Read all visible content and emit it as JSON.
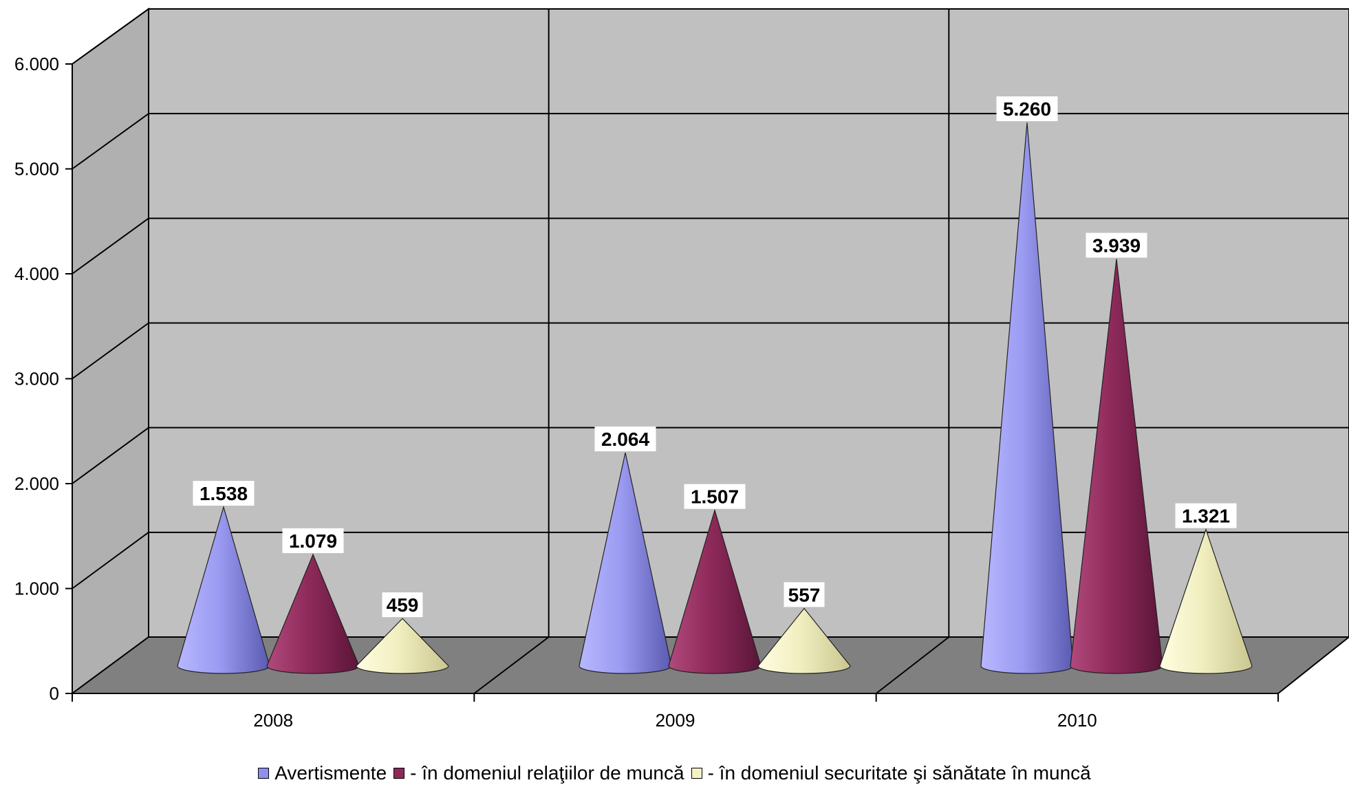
{
  "chart_data": {
    "type": "bar",
    "style": "3d-cone",
    "categories": [
      "2008",
      "2009",
      "2010"
    ],
    "series": [
      {
        "name": "Avertismente",
        "values": [
          1538,
          2064,
          5260
        ],
        "labels": [
          "1.538",
          "2.064",
          "5.260"
        ],
        "color": "#8f8fef"
      },
      {
        "name": "-  în domeniul relaţiilor de muncă",
        "values": [
          1079,
          1507,
          3939
        ],
        "labels": [
          "1.079",
          "1.507",
          "3.939"
        ],
        "color": "#8e2a5a"
      },
      {
        "name": "-  în domeniul securitate şi sănătate în muncă",
        "values": [
          459,
          557,
          1321
        ],
        "labels": [
          "459",
          "557",
          "1.321"
        ],
        "color": "#f4f2c4"
      }
    ],
    "yticks": [
      0,
      1000,
      2000,
      3000,
      4000,
      5000,
      6000
    ],
    "ytick_labels": [
      "0",
      "1.000",
      "2.000",
      "3.000",
      "4.000",
      "5.000",
      "6.000"
    ],
    "ylim": [
      0,
      6000
    ],
    "grid": true,
    "legend_position": "bottom",
    "wall_color": "#c0c0c0",
    "floor_color": "#808080"
  }
}
